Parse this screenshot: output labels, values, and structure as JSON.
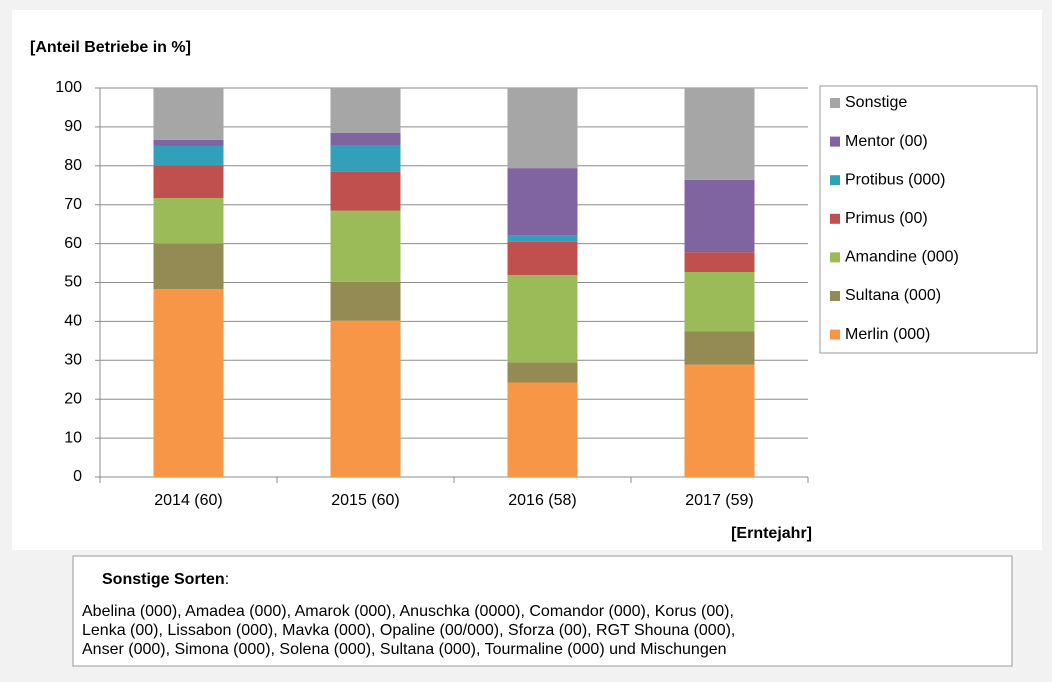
{
  "chart_data": {
    "type": "stacked_bar",
    "y_label": "[Anteil Betriebe in %]",
    "x_label": "[Erntejahr]",
    "categories": [
      "2014 (60)",
      "2015 (60)",
      "2016 (58)",
      "2017 (59)"
    ],
    "series": [
      {
        "name": "Merlin (000)",
        "color": "#f79646",
        "values": [
          48.3,
          40.2,
          24.3,
          28.9
        ]
      },
      {
        "name": "Sultana (000)",
        "color": "#948a54",
        "values": [
          11.7,
          10.0,
          5.2,
          8.5
        ]
      },
      {
        "name": "Amandine (000)",
        "color": "#9bbb59",
        "values": [
          11.7,
          18.3,
          22.4,
          15.3
        ]
      },
      {
        "name": "Primus (00)",
        "color": "#c0504d",
        "values": [
          8.4,
          10.0,
          8.6,
          5.1
        ]
      },
      {
        "name": "Protibus (000)",
        "color": "#31a0b8",
        "values": [
          5.0,
          6.7,
          1.7,
          0
        ]
      },
      {
        "name": "Mentor (00)",
        "color": "#8064a2",
        "values": [
          1.6,
          3.3,
          17.2,
          18.6
        ]
      },
      {
        "name": "Sonstige",
        "color": "#a6a6a6",
        "values": [
          13.3,
          11.5,
          20.6,
          23.6
        ]
      }
    ],
    "ylim": [
      0,
      100
    ],
    "yticks": [
      0,
      10,
      20,
      30,
      40,
      50,
      60,
      70,
      80,
      90,
      100
    ],
    "grid": true,
    "legend": "right"
  },
  "note": {
    "heading": "Sonstige Sorten",
    "heading_suffix": ":",
    "lines": [
      "Abelina (000), Amadea (000), Amarok (000), Anuschka (0000), Comandor (000), Korus (00),",
      "Lenka (00), Lissabon (000), Mavka (000), Opaline (00/000), Sforza (00), RGT Shouna (000),",
      "Anser (000), Simona (000), Solena (000), Sultana (000), Tourmaline (000) und Mischungen"
    ]
  }
}
